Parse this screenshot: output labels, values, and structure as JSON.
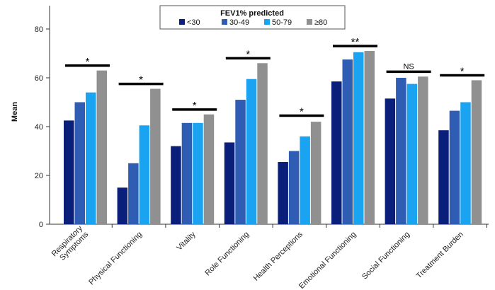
{
  "chart_data": {
    "type": "bar",
    "ylabel": "Mean",
    "ylim": [
      0,
      85
    ],
    "yticks": [
      0,
      20,
      40,
      60,
      80
    ],
    "grid": false,
    "legend": {
      "title": "FEV1% predicted",
      "placement": "top-center"
    },
    "categories": [
      [
        "Respiratory",
        "Symptoms"
      ],
      [
        "Physical Functioning"
      ],
      [
        "Vitality"
      ],
      [
        "Role Functioning"
      ],
      [
        "Health Perceptions"
      ],
      [
        "Emotional Functioning"
      ],
      [
        "Social Functioning"
      ],
      [
        "Treatment Burden"
      ]
    ],
    "series": [
      {
        "name": "<30",
        "color": "#0a1f7a",
        "values": [
          42.5,
          15,
          32,
          33.5,
          25.5,
          58.5,
          51.5,
          38.5
        ]
      },
      {
        "name": "30-49",
        "color": "#2f5db4",
        "values": [
          50,
          25,
          41.5,
          51,
          30,
          67.5,
          60,
          46.5
        ]
      },
      {
        "name": "50-79",
        "color": "#1aa3f0",
        "values": [
          54,
          40.5,
          41.5,
          59.5,
          36,
          70.5,
          57.5,
          50
        ]
      },
      {
        "name": "≥80",
        "color": "#909090",
        "values": [
          63,
          55.5,
          45,
          66,
          42,
          71,
          60.5,
          59
        ]
      }
    ],
    "significance": [
      {
        "label": "*",
        "level": 65
      },
      {
        "label": "*",
        "level": 57.5
      },
      {
        "label": "*",
        "level": 47
      },
      {
        "label": "*",
        "level": 68
      },
      {
        "label": "*",
        "level": 44.5
      },
      {
        "label": "**",
        "level": 73
      },
      {
        "label": "NS",
        "level": 62.5
      },
      {
        "label": "*",
        "level": 61
      }
    ]
  }
}
